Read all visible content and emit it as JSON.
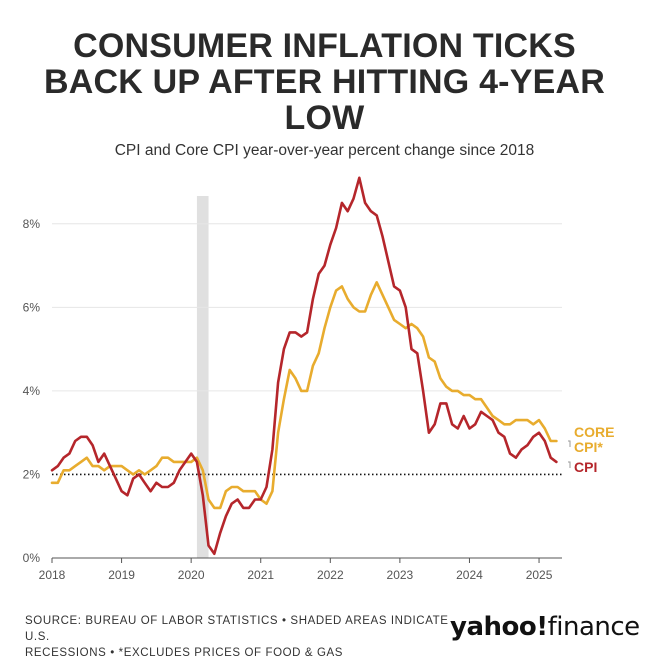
{
  "header": {
    "title_line1": "CONSUMER INFLATION TICKS",
    "title_line2": "BACK UP AFTER HITTING 4-YEAR",
    "title_line3": "LOW",
    "subtitle": "CPI and Core CPI year-over-year percent change since 2018"
  },
  "footer": {
    "source_line1": "SOURCE: BUREAU OF LABOR STATISTICS • SHADED AREAS INDICATE U.S.",
    "source_line2": "RECESSIONS • *EXCLUDES PRICES OF FOOD & GAS",
    "logo_yahoo": "yahoo!",
    "logo_finance": "finance"
  },
  "colors": {
    "cpi": "#b5262b",
    "core": "#e8ac2e",
    "recession": "#e0e0e0",
    "grid": "#e6e6e6",
    "axis": "#555555",
    "reference": "#111111"
  },
  "chart_data": {
    "type": "line",
    "title": "CONSUMER INFLATION TICKS BACK UP AFTER HITTING 4-YEAR LOW",
    "subtitle": "CPI and Core CPI year-over-year percent change since 2018",
    "xlabel": "",
    "ylabel": "",
    "xlim": [
      2018.0,
      2025.33
    ],
    "ylim": [
      0,
      9
    ],
    "x_ticks": [
      {
        "value": 2018,
        "label": "2018"
      },
      {
        "value": 2019,
        "label": "2019"
      },
      {
        "value": 2020,
        "label": "2020"
      },
      {
        "value": 2021,
        "label": "2021"
      },
      {
        "value": 2022,
        "label": "2022"
      },
      {
        "value": 2023,
        "label": "2023"
      },
      {
        "value": 2024,
        "label": "2024"
      },
      {
        "value": 2025,
        "label": "2025"
      }
    ],
    "y_ticks": [
      {
        "value": 0,
        "label": "0%"
      },
      {
        "value": 2,
        "label": "2%"
      },
      {
        "value": 4,
        "label": "4%"
      },
      {
        "value": 6,
        "label": "6%"
      },
      {
        "value": 8,
        "label": "8%"
      }
    ],
    "grid": true,
    "reference_line": {
      "y": 2,
      "style": "dotted"
    },
    "recession_band": {
      "x_start": 2020.083,
      "x_end": 2020.25
    },
    "series": [
      {
        "name": "CPI",
        "label": "CPI",
        "color_key": "cpi",
        "x": [
          2018.0,
          2018.083,
          2018.167,
          2018.25,
          2018.333,
          2018.417,
          2018.5,
          2018.583,
          2018.667,
          2018.75,
          2018.833,
          2018.917,
          2019.0,
          2019.083,
          2019.167,
          2019.25,
          2019.333,
          2019.417,
          2019.5,
          2019.583,
          2019.667,
          2019.75,
          2019.833,
          2019.917,
          2020.0,
          2020.083,
          2020.167,
          2020.25,
          2020.333,
          2020.417,
          2020.5,
          2020.583,
          2020.667,
          2020.75,
          2020.833,
          2020.917,
          2021.0,
          2021.083,
          2021.167,
          2021.25,
          2021.333,
          2021.417,
          2021.5,
          2021.583,
          2021.667,
          2021.75,
          2021.833,
          2021.917,
          2022.0,
          2022.083,
          2022.167,
          2022.25,
          2022.333,
          2022.417,
          2022.5,
          2022.583,
          2022.667,
          2022.75,
          2022.833,
          2022.917,
          2023.0,
          2023.083,
          2023.167,
          2023.25,
          2023.333,
          2023.417,
          2023.5,
          2023.583,
          2023.667,
          2023.75,
          2023.833,
          2023.917,
          2024.0,
          2024.083,
          2024.167,
          2024.25,
          2024.333,
          2024.417,
          2024.5,
          2024.583,
          2024.667,
          2024.75,
          2024.833,
          2024.917,
          2025.0,
          2025.083,
          2025.167,
          2025.25
        ],
        "values": [
          2.1,
          2.2,
          2.4,
          2.5,
          2.8,
          2.9,
          2.9,
          2.7,
          2.3,
          2.5,
          2.2,
          1.9,
          1.6,
          1.5,
          1.9,
          2.0,
          1.8,
          1.6,
          1.8,
          1.7,
          1.7,
          1.8,
          2.1,
          2.3,
          2.5,
          2.3,
          1.5,
          0.3,
          0.1,
          0.6,
          1.0,
          1.3,
          1.4,
          1.2,
          1.2,
          1.4,
          1.4,
          1.7,
          2.6,
          4.2,
          5.0,
          5.4,
          5.4,
          5.3,
          5.4,
          6.2,
          6.8,
          7.0,
          7.5,
          7.9,
          8.5,
          8.3,
          8.6,
          9.1,
          8.5,
          8.3,
          8.2,
          7.7,
          7.1,
          6.5,
          6.4,
          6.0,
          5.0,
          4.9,
          4.0,
          3.0,
          3.2,
          3.7,
          3.7,
          3.2,
          3.1,
          3.4,
          3.1,
          3.2,
          3.5,
          3.4,
          3.3,
          3.0,
          2.9,
          2.5,
          2.4,
          2.6,
          2.7,
          2.9,
          3.0,
          2.8,
          2.4,
          2.3
        ]
      },
      {
        "name": "Core CPI",
        "label_line1": "CORE",
        "label_line2": "CPI*",
        "color_key": "core",
        "x": [
          2018.0,
          2018.083,
          2018.167,
          2018.25,
          2018.333,
          2018.417,
          2018.5,
          2018.583,
          2018.667,
          2018.75,
          2018.833,
          2018.917,
          2019.0,
          2019.083,
          2019.167,
          2019.25,
          2019.333,
          2019.417,
          2019.5,
          2019.583,
          2019.667,
          2019.75,
          2019.833,
          2019.917,
          2020.0,
          2020.083,
          2020.167,
          2020.25,
          2020.333,
          2020.417,
          2020.5,
          2020.583,
          2020.667,
          2020.75,
          2020.833,
          2020.917,
          2021.0,
          2021.083,
          2021.167,
          2021.25,
          2021.333,
          2021.417,
          2021.5,
          2021.583,
          2021.667,
          2021.75,
          2021.833,
          2021.917,
          2022.0,
          2022.083,
          2022.167,
          2022.25,
          2022.333,
          2022.417,
          2022.5,
          2022.583,
          2022.667,
          2022.75,
          2022.833,
          2022.917,
          2023.0,
          2023.083,
          2023.167,
          2023.25,
          2023.333,
          2023.417,
          2023.5,
          2023.583,
          2023.667,
          2023.75,
          2023.833,
          2023.917,
          2024.0,
          2024.083,
          2024.167,
          2024.25,
          2024.333,
          2024.417,
          2024.5,
          2024.583,
          2024.667,
          2024.75,
          2024.833,
          2024.917,
          2025.0,
          2025.083,
          2025.167,
          2025.25
        ],
        "values": [
          1.8,
          1.8,
          2.1,
          2.1,
          2.2,
          2.3,
          2.4,
          2.2,
          2.2,
          2.1,
          2.2,
          2.2,
          2.2,
          2.1,
          2.0,
          2.1,
          2.0,
          2.1,
          2.2,
          2.4,
          2.4,
          2.3,
          2.3,
          2.3,
          2.3,
          2.4,
          2.1,
          1.4,
          1.2,
          1.2,
          1.6,
          1.7,
          1.7,
          1.6,
          1.6,
          1.6,
          1.4,
          1.3,
          1.6,
          3.0,
          3.8,
          4.5,
          4.3,
          4.0,
          4.0,
          4.6,
          4.9,
          5.5,
          6.0,
          6.4,
          6.5,
          6.2,
          6.0,
          5.9,
          5.9,
          6.3,
          6.6,
          6.3,
          6.0,
          5.7,
          5.6,
          5.5,
          5.6,
          5.5,
          5.3,
          4.8,
          4.7,
          4.3,
          4.1,
          4.0,
          4.0,
          3.9,
          3.9,
          3.8,
          3.8,
          3.6,
          3.4,
          3.3,
          3.2,
          3.2,
          3.3,
          3.3,
          3.3,
          3.2,
          3.3,
          3.1,
          2.8,
          2.8
        ]
      }
    ]
  }
}
